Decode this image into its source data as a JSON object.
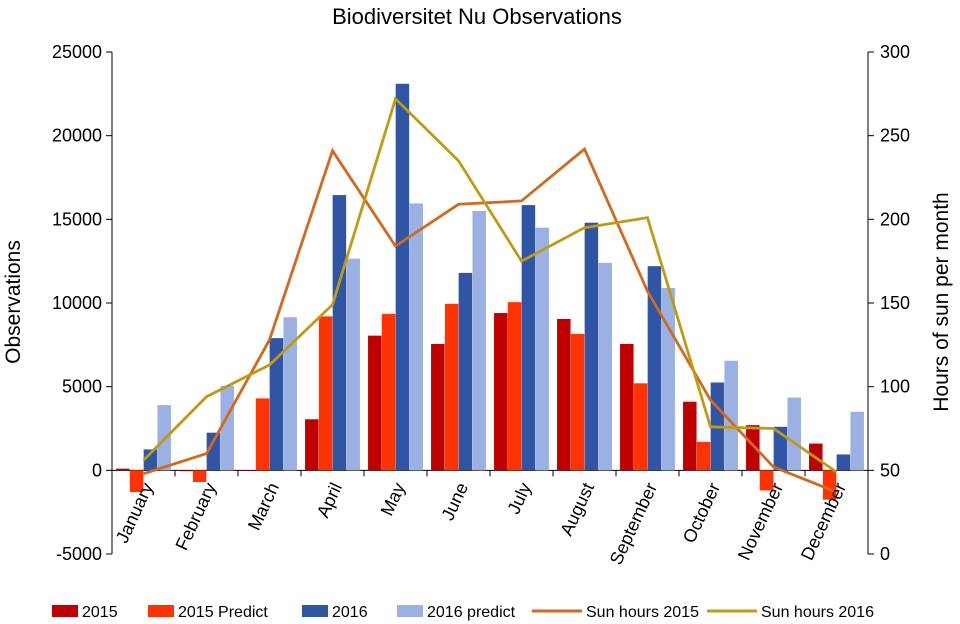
{
  "chart_data": {
    "type": "bar",
    "title": "Biodiversitet Nu Observations",
    "ylabel": "Observations",
    "y2label": "Hours of sun per month",
    "ylim": [
      -5000,
      25000
    ],
    "y2lim": [
      0,
      300
    ],
    "yticks": [
      -5000,
      0,
      5000,
      10000,
      15000,
      20000,
      25000
    ],
    "y2ticks": [
      0,
      50,
      100,
      150,
      200,
      250,
      300
    ],
    "grid": false,
    "legend_position": "bottom",
    "categories": [
      "January",
      "February",
      "March",
      "April",
      "May",
      "June",
      "July",
      "August",
      "September",
      "October",
      "November",
      "December"
    ],
    "series": [
      {
        "name": "2015",
        "kind": "bar",
        "axis": "left",
        "color": "#c00000",
        "values": [
          100,
          -50,
          0,
          3050,
          8050,
          7550,
          9400,
          9050,
          7550,
          4100,
          2700,
          1600
        ]
      },
      {
        "name": "2015 Predict",
        "kind": "bar",
        "axis": "left",
        "color": "#ff3300",
        "values": [
          -1300,
          -700,
          4300,
          9200,
          9350,
          9950,
          10050,
          8150,
          5200,
          1700,
          -1200,
          -1750
        ]
      },
      {
        "name": "2016",
        "kind": "bar",
        "axis": "left",
        "color": "#2f55a4",
        "values": [
          1250,
          2250,
          7900,
          16450,
          23100,
          11800,
          15850,
          14800,
          12200,
          5250,
          2600,
          950
        ]
      },
      {
        "name": "2016 predict",
        "kind": "bar",
        "axis": "left",
        "color": "#9bb1e3",
        "values": [
          3900,
          5050,
          9150,
          12650,
          15950,
          15500,
          14500,
          12400,
          10900,
          6550,
          4350,
          3500
        ]
      },
      {
        "name": "Sun hours 2015",
        "kind": "line",
        "axis": "right",
        "color": "#d2691e",
        "values": [
          48,
          60,
          128,
          241,
          184,
          209,
          211,
          242,
          157,
          92,
          52,
          37
        ]
      },
      {
        "name": "Sun hours 2016",
        "kind": "line",
        "axis": "right",
        "color": "#bf9b14",
        "values": [
          56,
          94,
          113,
          149,
          272,
          235,
          175,
          195,
          201,
          76,
          75,
          49
        ]
      }
    ]
  }
}
